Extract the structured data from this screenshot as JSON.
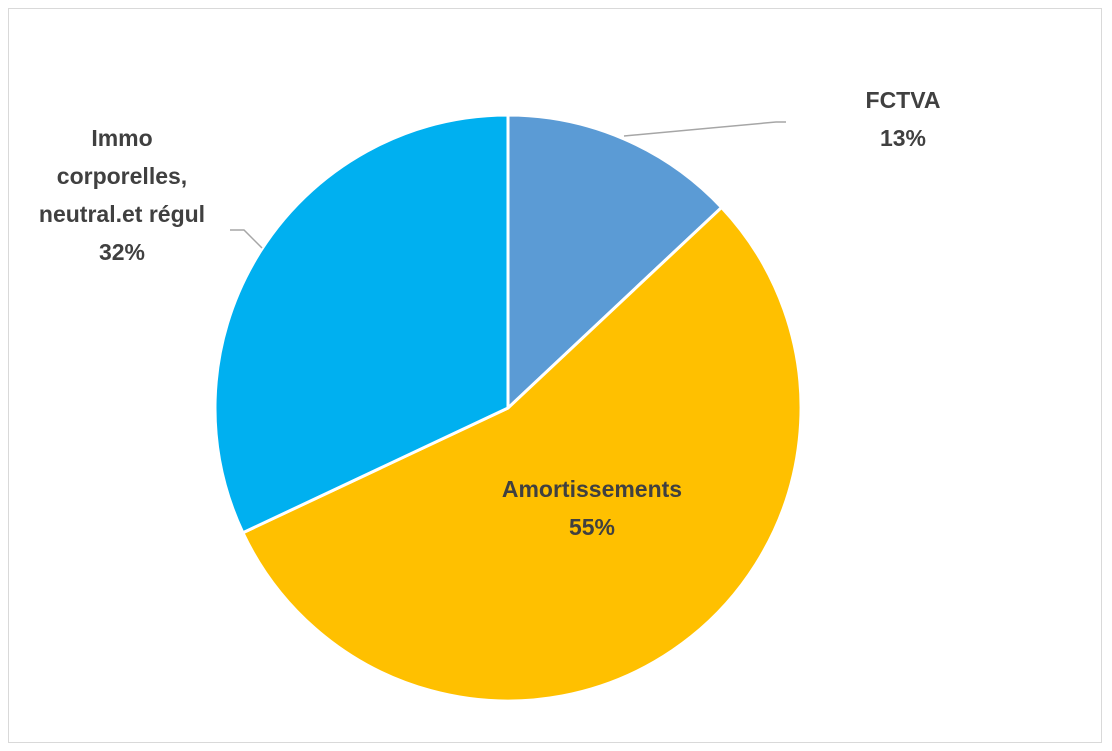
{
  "chart_data": {
    "type": "pie",
    "title": "",
    "start_angle_deg": 0,
    "direction": "clockwise",
    "slice_border_color": "#ffffff",
    "leader_line_color": "#a6a6a6",
    "label_color": "#404040",
    "slices": [
      {
        "name_lines": [
          "FCTVA"
        ],
        "value": 13,
        "value_label": "13%",
        "color": "#5b9bd5",
        "label_position": "outside-top-right"
      },
      {
        "name_lines": [
          "Amortissements"
        ],
        "value": 55,
        "value_label": "55%",
        "color": "#ffc000",
        "label_position": "inside"
      },
      {
        "name_lines": [
          "Immo",
          "corporelles,",
          "neutral.et régul"
        ],
        "value": 32,
        "value_label": "32%",
        "color": "#00b0f0",
        "label_position": "outside-left"
      }
    ]
  }
}
